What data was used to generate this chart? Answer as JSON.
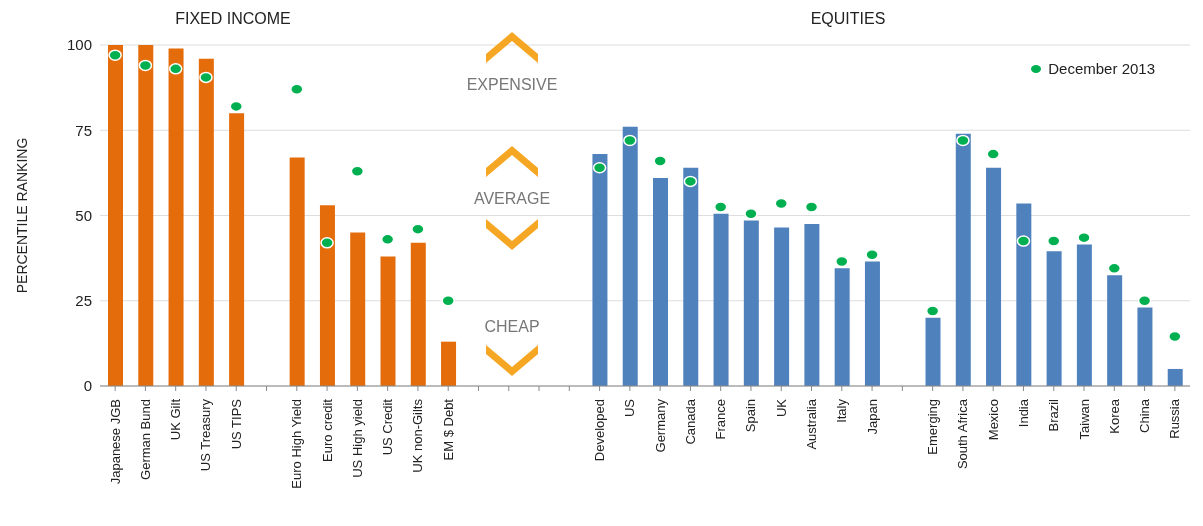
{
  "chart_data": {
    "type": "bar",
    "ylabel": "PERCENTILE RANKING",
    "annotations": [
      "FIXED INCOME",
      "EQUITIES",
      "EXPENSIVE",
      "AVERAGE",
      "CHEAP"
    ],
    "categories": [
      "Japanese JGB",
      "German Bund",
      "UK Gilt",
      "US Treasury",
      "US TIPS",
      null,
      "Euro High Yield",
      "Euro credit",
      "US High yield",
      "US Credit",
      "UK non-Gilts",
      "EM $ Debt",
      null,
      null,
      null,
      null,
      "Developed",
      "US",
      "Germany",
      "Canada",
      "France",
      "Spain",
      "UK",
      "Australia",
      "Italy",
      "Japan",
      null,
      "Emerging",
      "South Africa",
      "Mexico",
      "India",
      "Brazil",
      "Taiwan",
      "Korea",
      "China",
      "Russia"
    ],
    "series": [
      {
        "colors": [
          "#e46c0a",
          "#e46c0a",
          "#e46c0a",
          "#e46c0a",
          "#e46c0a",
          null,
          "#e46c0a",
          "#e46c0a",
          "#e46c0a",
          "#e46c0a",
          "#e46c0a",
          "#e46c0a",
          null,
          null,
          null,
          null,
          "#4f81bd",
          "#4f81bd",
          "#4f81bd",
          "#4f81bd",
          "#4f81bd",
          "#4f81bd",
          "#4f81bd",
          "#4f81bd",
          "#4f81bd",
          "#4f81bd",
          null,
          "#4f81bd",
          "#4f81bd",
          "#4f81bd",
          "#4f81bd",
          "#4f81bd",
          "#4f81bd",
          "#4f81bd",
          "#4f81bd",
          "#4f81bd"
        ],
        "values": [
          100,
          100,
          99,
          96,
          80,
          null,
          67,
          53,
          45,
          38,
          42,
          13,
          null,
          null,
          null,
          null,
          68,
          76,
          61,
          64,
          50.5,
          48.5,
          46.5,
          47.5,
          34.5,
          36.5,
          null,
          20,
          74,
          64,
          53.5,
          39.5,
          41.5,
          32.5,
          23,
          5
        ]
      },
      {
        "type": "scatter",
        "name": "December 2013",
        "color": "#00b050",
        "values": [
          97,
          94,
          93,
          90.5,
          82,
          null,
          87,
          42,
          63,
          43,
          46,
          25,
          null,
          null,
          null,
          null,
          64,
          72,
          66,
          60,
          52.5,
          50.5,
          53.5,
          52.5,
          36.5,
          38.5,
          null,
          22,
          72,
          68,
          42.5,
          42.5,
          43.5,
          34.5,
          25,
          14.5
        ]
      }
    ],
    "marker": "circle",
    "ylim": [
      0,
      100
    ],
    "yticks": [
      0,
      25,
      50,
      75,
      100
    ],
    "grid": "y",
    "legend": "top right"
  }
}
